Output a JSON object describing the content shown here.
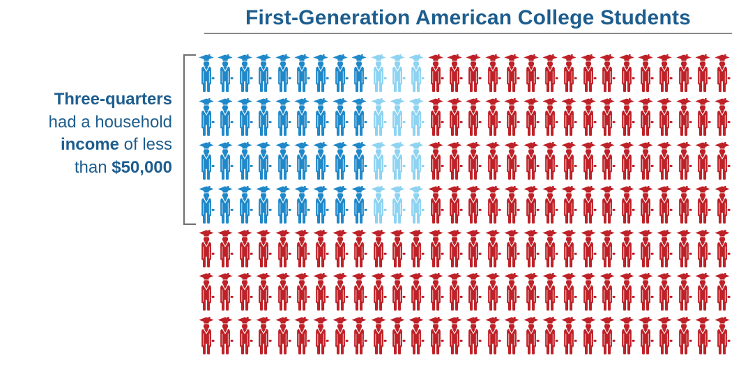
{
  "header": {
    "title": "First-Generation American College Students",
    "title_color": "#1d5d8e",
    "underline_color": "#87898c"
  },
  "callout": {
    "text_color": "#1d5d8e",
    "bracket_color": "#6d6e71",
    "bracket_rows_spanned": 4,
    "lines": [
      {
        "parts": [
          {
            "text": "Three-quarters",
            "bold": true
          }
        ]
      },
      {
        "parts": [
          {
            "text": "had a household",
            "bold": false
          }
        ]
      },
      {
        "parts": [
          {
            "text": "income",
            "bold": true
          },
          {
            "text": " of less",
            "bold": false
          }
        ]
      },
      {
        "parts": [
          {
            "text": "than ",
            "bold": false
          },
          {
            "text": "$50,000",
            "bold": true
          }
        ]
      }
    ]
  },
  "chart_data": {
    "type": "pictogram",
    "title": "First-Generation American College Students",
    "unit_icon": "graduate-person",
    "rows": 7,
    "columns": 28,
    "total_units": 196,
    "pattern": {
      "blue_rows": 4,
      "dark_blue_per_row": 9,
      "light_blue_per_row": 3,
      "red_fills_remainder": true
    },
    "counts": {
      "dark_blue": 36,
      "light_blue": 12,
      "red": 148
    },
    "fractions": {
      "red_share": 0.755,
      "blue_share": 0.245
    },
    "annotation": "Three-quarters had a household income of less than $50,000",
    "colors": {
      "dark_blue": "#1f88c9",
      "light_blue": "#8ed3f1",
      "red": "#be2127"
    },
    "background": "#ffffff",
    "legend_position": "none",
    "grid_lines": false
  }
}
